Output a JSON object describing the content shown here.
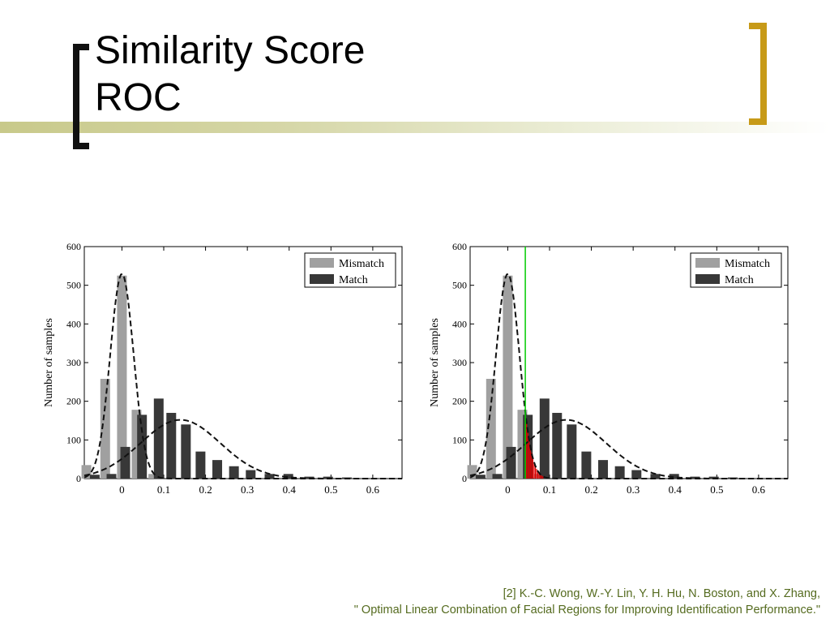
{
  "slide": {
    "title_line1": "Similarity Score",
    "title_line2": "ROC",
    "citation_line1": "[2]  K.-C. Wong, W.-Y. Lin, Y. H. Hu, N. Boston, and X. Zhang,",
    "citation_line2": "\" Optimal Linear Combination of Facial Regions for Improving Identification Performance.\""
  },
  "colors": {
    "accent_gold": "#c79a18",
    "bracket_black": "#111111",
    "title_rule": "#c8c98a",
    "citation_text": "#556b1f",
    "mismatch_bar": "#a0a0a0",
    "match_bar": "#383838",
    "threshold_line": "#00cc00",
    "overlap_fill": "#e00000"
  },
  "chart_data": [
    {
      "type": "bar",
      "ylabel": "Number of samples",
      "xlabel": "",
      "ylim": [
        0,
        600
      ],
      "xlim": [
        -0.09,
        0.67
      ],
      "xticks": [
        "0",
        "0.1",
        "0.2",
        "0.3",
        "0.4",
        "0.5",
        "0.6"
      ],
      "yticks": [
        "0",
        "100",
        "200",
        "300",
        "400",
        "500",
        "600"
      ],
      "legend": [
        "Mismatch",
        "Match"
      ],
      "legend_position": "top-right",
      "series": [
        {
          "name": "Mismatch",
          "x": [
            -0.085,
            -0.04,
            0.0,
            0.035,
            0.075
          ],
          "values": [
            35,
            258,
            525,
            178,
            12
          ]
        },
        {
          "name": "Match",
          "x": [
            -0.065,
            -0.025,
            0.008,
            0.048,
            0.088,
            0.118,
            0.153,
            0.188,
            0.228,
            0.268,
            0.308,
            0.353,
            0.398,
            0.448,
            0.493,
            0.538
          ],
          "values": [
            10,
            12,
            82,
            165,
            207,
            170,
            140,
            70,
            48,
            32,
            22,
            12,
            12,
            5,
            5,
            3
          ]
        }
      ],
      "fit_curves": [
        {
          "series": "Mismatch",
          "mean": 0.0,
          "sd": 0.028,
          "peak": 530
        },
        {
          "series": "Match",
          "mean": 0.14,
          "sd": 0.095,
          "peak": 152
        }
      ]
    },
    {
      "type": "bar",
      "ylabel": "Number of samples",
      "xlabel": "",
      "ylim": [
        0,
        600
      ],
      "xlim": [
        -0.09,
        0.67
      ],
      "xticks": [
        "0",
        "0.1",
        "0.2",
        "0.3",
        "0.4",
        "0.5",
        "0.6"
      ],
      "yticks": [
        "0",
        "100",
        "200",
        "300",
        "400",
        "500",
        "600"
      ],
      "legend": [
        "Mismatch",
        "Match"
      ],
      "legend_position": "top-right",
      "series": [
        {
          "name": "Mismatch",
          "x": [
            -0.085,
            -0.04,
            0.0,
            0.035,
            0.075
          ],
          "values": [
            35,
            258,
            525,
            178,
            12
          ]
        },
        {
          "name": "Match",
          "x": [
            -0.065,
            -0.025,
            0.008,
            0.048,
            0.088,
            0.118,
            0.153,
            0.188,
            0.228,
            0.268,
            0.308,
            0.353,
            0.398,
            0.448,
            0.493,
            0.538
          ],
          "values": [
            10,
            12,
            82,
            165,
            207,
            170,
            140,
            70,
            48,
            32,
            22,
            12,
            12,
            5,
            5,
            3
          ]
        }
      ],
      "fit_curves": [
        {
          "series": "Mismatch",
          "mean": 0.0,
          "sd": 0.028,
          "peak": 530
        },
        {
          "series": "Match",
          "mean": 0.14,
          "sd": 0.095,
          "peak": 152
        }
      ],
      "threshold_x": 0.042,
      "overlap_region": [
        0.042,
        0.085
      ]
    }
  ]
}
